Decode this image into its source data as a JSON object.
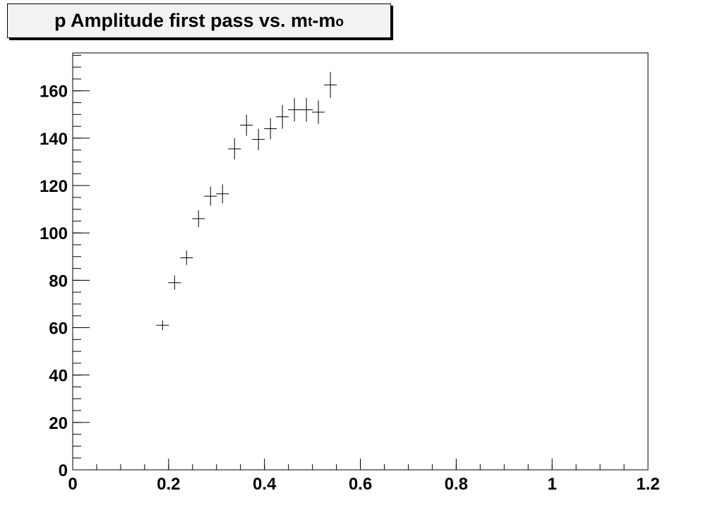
{
  "chart_data": {
    "type": "scatter",
    "title": {
      "main": "p Amplitude first pass vs. m",
      "sub1": "t",
      "mid": "-m",
      "sub2": "o"
    },
    "xlabel": "",
    "ylabel": "",
    "xlim": [
      0,
      1.2
    ],
    "ylim": [
      0,
      176
    ],
    "x_ticks": [
      0,
      0.2,
      0.4,
      0.6,
      0.8,
      1,
      1.2
    ],
    "x_tick_labels": [
      "0",
      "0.2",
      "0.4",
      "0.6",
      "0.8",
      "1",
      "1.2"
    ],
    "y_ticks": [
      0,
      20,
      40,
      60,
      80,
      100,
      120,
      140,
      160
    ],
    "y_tick_labels": [
      "0",
      "20",
      "40",
      "60",
      "80",
      "100",
      "120",
      "140",
      "160"
    ],
    "grid": false,
    "marker": "cross",
    "color": "#000000",
    "points": [
      {
        "x": 0.1875,
        "y": 61,
        "yerr": 2
      },
      {
        "x": 0.2125,
        "y": 79,
        "yerr": 3
      },
      {
        "x": 0.2375,
        "y": 89.5,
        "yerr": 3
      },
      {
        "x": 0.2625,
        "y": 106,
        "yerr": 3.5
      },
      {
        "x": 0.2875,
        "y": 115.5,
        "yerr": 4
      },
      {
        "x": 0.3125,
        "y": 116.5,
        "yerr": 4
      },
      {
        "x": 0.3375,
        "y": 135.5,
        "yerr": 4.5
      },
      {
        "x": 0.3625,
        "y": 145.5,
        "yerr": 4.5
      },
      {
        "x": 0.3875,
        "y": 139.5,
        "yerr": 4.5
      },
      {
        "x": 0.4125,
        "y": 144,
        "yerr": 4.5
      },
      {
        "x": 0.4375,
        "y": 149,
        "yerr": 5
      },
      {
        "x": 0.4625,
        "y": 152,
        "yerr": 5
      },
      {
        "x": 0.4875,
        "y": 152,
        "yerr": 5
      },
      {
        "x": 0.5125,
        "y": 151,
        "yerr": 5
      },
      {
        "x": 0.5375,
        "y": 162.5,
        "yerr": 5.5
      }
    ]
  }
}
